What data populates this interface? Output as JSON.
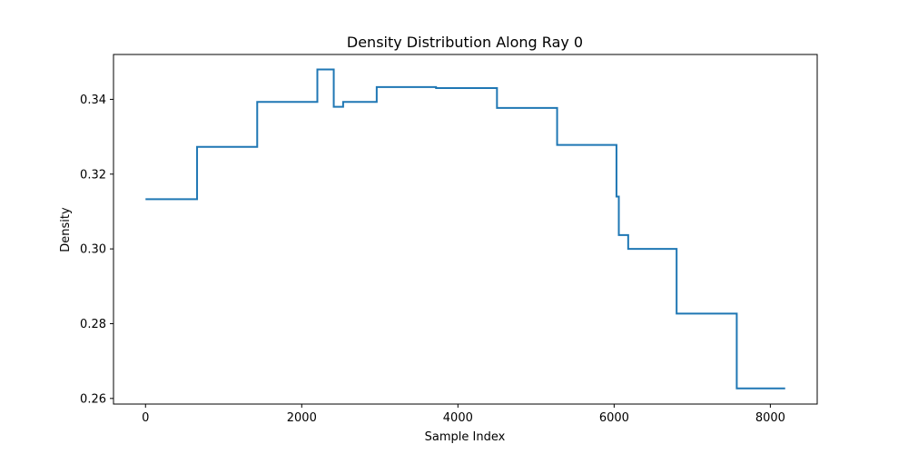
{
  "chart_data": {
    "type": "line",
    "title": "Density Distribution Along Ray 0",
    "xlabel": "Sample Index",
    "ylabel": "Density",
    "xlim": [
      -410,
      8600
    ],
    "ylim": [
      0.2585,
      0.352
    ],
    "xticks": [
      0,
      2000,
      4000,
      6000,
      8000
    ],
    "xtick_labels": [
      "0",
      "2000",
      "4000",
      "6000",
      "8000"
    ],
    "yticks": [
      0.26,
      0.28,
      0.3,
      0.32,
      0.34
    ],
    "ytick_labels": [
      "0.26",
      "0.28",
      "0.30",
      "0.32",
      "0.34"
    ],
    "grid": false,
    "line_color": "#1f77b4",
    "series": [
      {
        "step": "post",
        "x": [
          0,
          660,
          1430,
          2200,
          2410,
          2530,
          2960,
          3720,
          4500,
          5270,
          6030,
          6060,
          6180,
          6800,
          7570,
          8190
        ],
        "y": [
          0.3133,
          0.3273,
          0.3393,
          0.348,
          0.338,
          0.3393,
          0.3433,
          0.343,
          0.3377,
          0.3278,
          0.314,
          0.3037,
          0.3,
          0.2827,
          0.2627,
          0.2627
        ]
      }
    ]
  }
}
